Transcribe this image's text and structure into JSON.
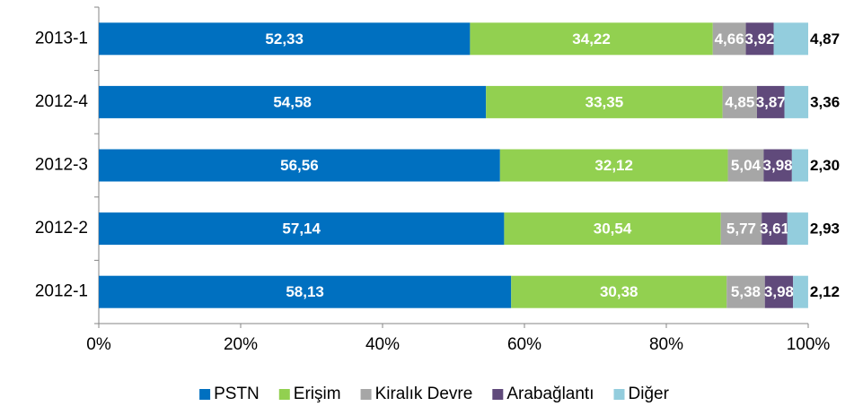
{
  "chart_data": {
    "type": "stacked-bar-horizontal",
    "categories": [
      "2013-1",
      "2012-4",
      "2012-3",
      "2012-2",
      "2012-1"
    ],
    "series": [
      {
        "name": "PSTN",
        "color": "#0070c0",
        "values": [
          52.33,
          54.58,
          56.56,
          57.14,
          58.13
        ],
        "value_labels": [
          "52,33",
          "54,58",
          "56,56",
          "57,14",
          "58,13"
        ]
      },
      {
        "name": "Erişim",
        "color": "#92d050",
        "values": [
          34.22,
          33.35,
          32.12,
          30.54,
          30.38
        ],
        "value_labels": [
          "34,22",
          "33,35",
          "32,12",
          "30,54",
          "30,38"
        ]
      },
      {
        "name": "Kiralık Devre",
        "color": "#a6a6a6",
        "values": [
          4.66,
          4.85,
          5.04,
          5.77,
          5.38
        ],
        "value_labels": [
          "4,66",
          "4,85",
          "5,04",
          "5,77",
          "5,38"
        ]
      },
      {
        "name": "Arabağlantı",
        "color": "#604a7b",
        "values": [
          3.92,
          3.87,
          3.98,
          3.61,
          3.98
        ],
        "value_labels": [
          "3,92",
          "3,87",
          "3,98",
          "3,61",
          "3,98"
        ]
      },
      {
        "name": "Diğer",
        "color": "#93cddd",
        "values": [
          4.87,
          3.36,
          2.3,
          2.93,
          2.12
        ],
        "value_labels": [
          "4,87",
          "3,36",
          "2,30",
          "2,93",
          "2,12"
        ]
      }
    ],
    "xlim": [
      0,
      100
    ],
    "xticks": [
      {
        "value": 0,
        "label": "0%"
      },
      {
        "value": 20,
        "label": "20%"
      },
      {
        "value": 40,
        "label": "40%"
      },
      {
        "value": 60,
        "label": "60%"
      },
      {
        "value": 80,
        "label": "80%"
      },
      {
        "value": 100,
        "label": "100%"
      }
    ],
    "legend": "bottom"
  }
}
